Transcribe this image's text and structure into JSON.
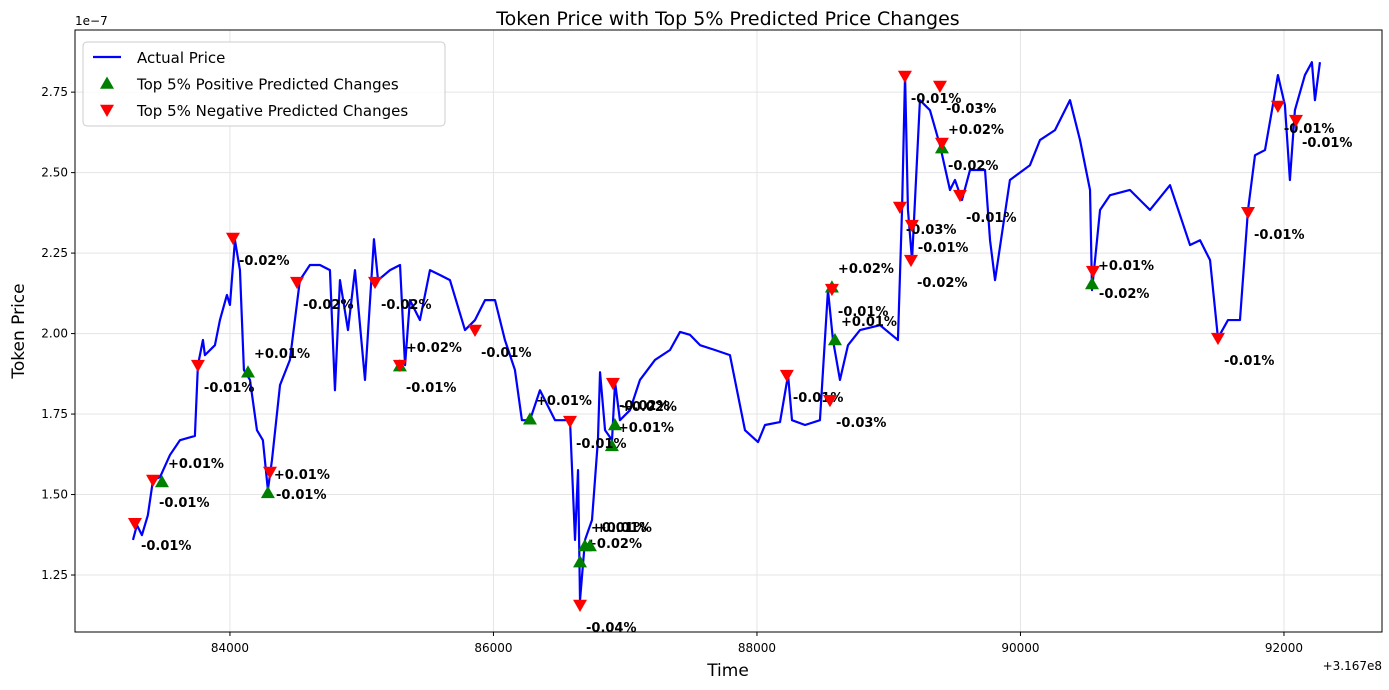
{
  "chart_data": {
    "type": "line",
    "title": "Token Price with Top 5% Predicted Price Changes",
    "x_label": "Time",
    "y_label": "Token Price",
    "x_offset_text": "+3.167e8",
    "y_offset_text": "1e−7",
    "xlim": [
      82824,
      92744
    ],
    "ylim": [
      1.073,
      2.943
    ],
    "xticks": [
      84000,
      86000,
      88000,
      90000,
      92000
    ],
    "yticks": [
      1.25,
      {
        "value": 1.5,
        "label": "1.50"
      },
      1.75,
      {
        "value": 2,
        "label": "2.00"
      },
      2.25,
      {
        "value": 2.5,
        "label": "2.50"
      },
      2.75
    ],
    "grid": true,
    "legend": "upper left",
    "series": [
      {
        "name": "Actual Price",
        "kind": "line",
        "color": "#0000ff",
        "x": [
          83264,
          83294,
          83332,
          83377,
          83416,
          83469,
          83545,
          83621,
          83734,
          83757,
          83795,
          83810,
          83886,
          83924,
          83977,
          84000,
          84038,
          84076,
          84106,
          84152,
          84205,
          84250,
          84288,
          84319,
          84380,
          84455,
          84531,
          84607,
          84683,
          84759,
          84797,
          84835,
          84896,
          84949,
          85025,
          85093,
          85124,
          85215,
          85291,
          85329,
          85366,
          85442,
          85518,
          85594,
          85670,
          85784,
          85860,
          85936,
          86012,
          86087,
          86163,
          86216,
          86277,
          86353,
          86467,
          86581,
          86619,
          86642,
          86657,
          86695,
          86748,
          86793,
          86809,
          86847,
          86900,
          86923,
          86960,
          87036,
          87112,
          87226,
          87340,
          87416,
          87492,
          87568,
          87681,
          87795,
          87909,
          88008,
          88061,
          88175,
          88236,
          88266,
          88365,
          88478,
          88539,
          88577,
          88630,
          88691,
          88782,
          88934,
          89070,
          89101,
          89124,
          89146,
          89177,
          89237,
          89313,
          89389,
          89465,
          89503,
          89556,
          89617,
          89731,
          89769,
          89807,
          89920,
          90072,
          90148,
          90262,
          90376,
          90452,
          90528,
          90543,
          90604,
          90680,
          90831,
          90983,
          91135,
          91287,
          91363,
          91439,
          91499,
          91575,
          91666,
          91727,
          91780,
          91856,
          91909,
          91954,
          92007,
          92045,
          92083,
          92159,
          92212,
          92235,
          92273
        ],
        "values": [
          1.359,
          1.405,
          1.374,
          1.436,
          1.545,
          1.554,
          1.623,
          1.669,
          1.682,
          1.902,
          1.98,
          1.933,
          1.964,
          2.042,
          2.12,
          2.089,
          2.29,
          2.197,
          1.887,
          1.856,
          1.7,
          1.669,
          1.514,
          1.607,
          1.84,
          1.918,
          2.166,
          2.213,
          2.213,
          2.197,
          1.824,
          2.166,
          2.011,
          2.197,
          1.856,
          2.293,
          2.166,
          2.197,
          2.213,
          1.902,
          2.104,
          2.042,
          2.197,
          2.182,
          2.166,
          2.011,
          2.042,
          2.104,
          2.104,
          1.98,
          1.887,
          1.731,
          1.731,
          1.824,
          1.731,
          1.731,
          1.359,
          1.576,
          1.172,
          1.359,
          1.421,
          1.669,
          1.88,
          1.7,
          1.669,
          1.849,
          1.731,
          1.762,
          1.856,
          1.918,
          1.949,
          2.005,
          1.996,
          1.964,
          1.949,
          1.933,
          1.7,
          1.663,
          1.716,
          1.725,
          1.871,
          1.731,
          1.716,
          1.731,
          2.135,
          1.98,
          1.856,
          1.964,
          2.011,
          2.026,
          1.98,
          2.384,
          2.803,
          2.384,
          2.228,
          2.725,
          2.694,
          2.585,
          2.446,
          2.477,
          2.415,
          2.508,
          2.508,
          2.29,
          2.166,
          2.477,
          2.523,
          2.601,
          2.632,
          2.725,
          2.601,
          2.446,
          2.135,
          2.384,
          2.43,
          2.446,
          2.384,
          2.461,
          2.275,
          2.29,
          2.228,
          1.986,
          2.042,
          2.042,
          2.384,
          2.554,
          2.57,
          2.694,
          2.803,
          2.71,
          2.477,
          2.694,
          2.803,
          2.843,
          2.725,
          2.843
        ]
      },
      {
        "name": "Top 5% Positive Predicted Changes",
        "kind": "scatter",
        "marker": "up",
        "color": "#008000",
        "label_color": "#006400",
        "x": [
          83484,
          84137,
          84288,
          85290,
          86277,
          86657,
          86694,
          86732,
          86899,
          86922,
          88569,
          88592,
          89404,
          90543
        ],
        "values": [
          1.539,
          1.88,
          1.505,
          1.899,
          1.734,
          1.29,
          1.34,
          1.34,
          1.651,
          1.716,
          2.144,
          1.98,
          2.576,
          2.154
        ],
        "annotations": [
          "+0.01%",
          "+0.01%",
          "+0.01%",
          "+0.02%",
          "+0.01%",
          "+0.02%",
          "+0.01%",
          "+0.01%",
          "+0.01%",
          "+0.02%",
          "+0.02%",
          "+0.01%",
          "+0.02%",
          "+0.01%"
        ]
      },
      {
        "name": "Top 5% Negative Predicted Changes",
        "kind": "scatter",
        "marker": "down",
        "color": "#ff0000",
        "label_color": "#8b0000",
        "x": [
          83279,
          83416,
          83757,
          84023,
          84304,
          84509,
          85101,
          85290,
          85860,
          86581,
          86657,
          86907,
          88227,
          88554,
          88569,
          89085,
          89123,
          89176,
          89169,
          89389,
          89404,
          89541,
          90550,
          91499,
          91727,
          91954,
          92091
        ],
        "values": [
          1.411,
          1.545,
          1.902,
          2.297,
          1.57,
          2.16,
          2.16,
          1.902,
          2.011,
          1.728,
          1.157,
          1.846,
          1.871,
          1.793,
          2.138,
          2.393,
          2.8,
          2.337,
          2.228,
          2.769,
          2.592,
          2.43,
          2.194,
          1.986,
          2.377,
          2.707,
          2.663
        ],
        "annotations": [
          "-0.01%",
          "-0.01%",
          "-0.01%",
          "-0.02%",
          "-0.01%",
          "-0.02%",
          "-0.02%",
          "-0.01%",
          "-0.01%",
          "-0.01%",
          "-0.04%",
          "-0.02%",
          "-0.01%",
          "-0.03%",
          "-0.01%",
          "-0.03%",
          "-0.01%",
          "-0.01%",
          "-0.02%",
          "-0.03%",
          "-0.02%",
          "-0.01%",
          "-0.02%",
          "-0.01%",
          "-0.01%",
          "-0.01%",
          "-0.01%"
        ]
      }
    ]
  }
}
